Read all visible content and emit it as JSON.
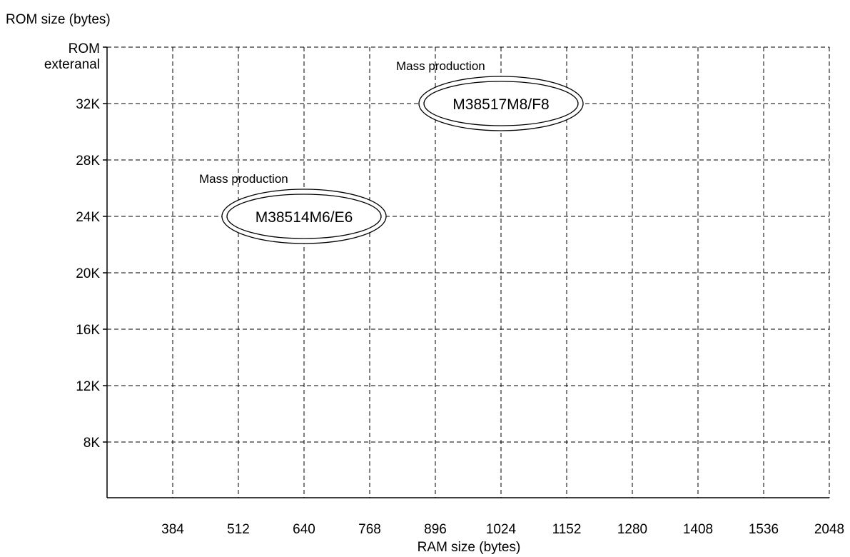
{
  "chart_data": {
    "type": "scatter",
    "ylabel": "ROM size (bytes)",
    "xlabel": "RAM size (bytes)",
    "x_ticks": [
      "384",
      "512",
      "640",
      "768",
      "896",
      "1024",
      "1152",
      "1280",
      "1408",
      "1536",
      "2048"
    ],
    "y_ticks": [
      "ROM\nexteranal",
      "32K",
      "28K",
      "24K",
      "20K",
      "16K",
      "12K",
      "8K"
    ],
    "grid": true,
    "grid_style": "dashed",
    "products": [
      {
        "name": "M38517M8/F8",
        "status": "Mass production",
        "x_tick": "1024",
        "y_tick": "32K"
      },
      {
        "name": "M38514M6/E6",
        "status": "Mass production",
        "x_tick": "640",
        "y_tick": "24K"
      }
    ]
  }
}
